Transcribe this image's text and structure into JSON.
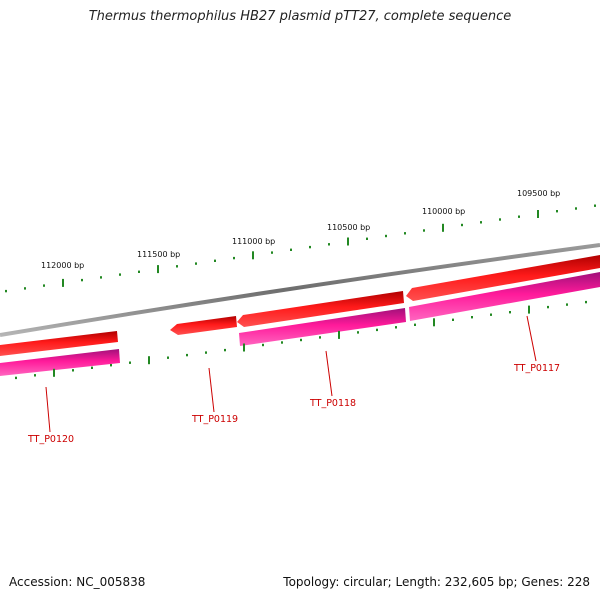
{
  "title": "Thermus thermophilus HB27 plasmid pTT27, complete sequence",
  "footer": {
    "accession": "Accession: NC_005838",
    "summary": "Topology: circular; Length: 232,605 bp; Genes: 228"
  },
  "colors": {
    "backbone": "#808080",
    "forward_feature": "#ff0000",
    "reverse_feature": "#ee1188",
    "tick": "#228822",
    "label_line": "#cc0000"
  },
  "scale_labels": [
    "112000 bp",
    "111500 bp",
    "111000 bp",
    "110500 bp",
    "110000 bp",
    "109500 bp"
  ],
  "genes": [
    "TT_P0120",
    "TT_P0119",
    "TT_P0118",
    "TT_P0117"
  ]
}
